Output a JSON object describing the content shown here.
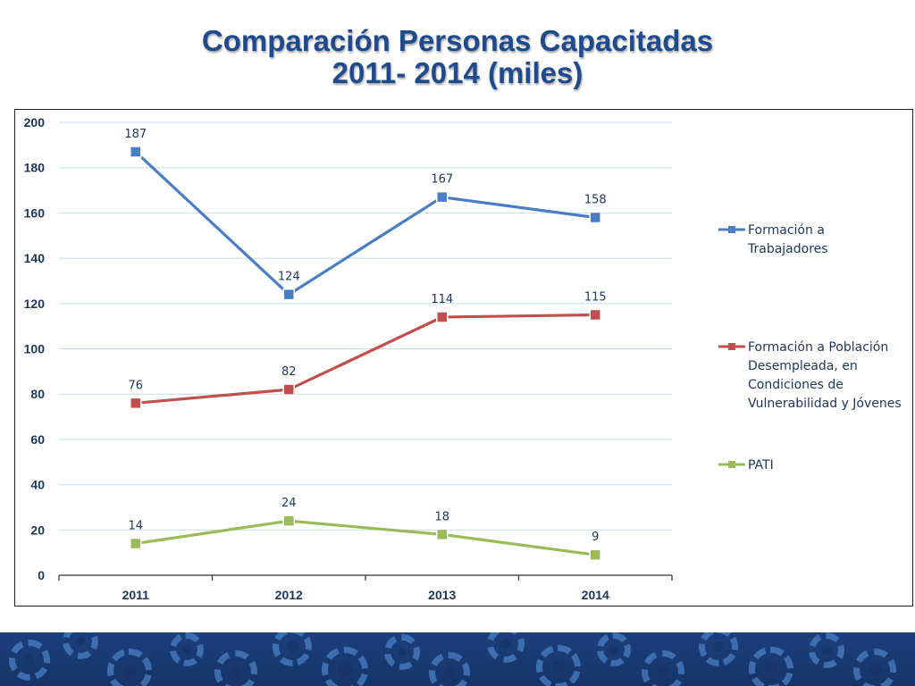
{
  "slide": {
    "title_line1": "Comparación Personas Capacitadas",
    "title_line2": "2011- 2014 (miles)"
  },
  "chart_data": {
    "type": "line",
    "title": "Comparación Personas Capacitadas 2011- 2014 (miles)",
    "categories": [
      "2011",
      "2012",
      "2013",
      "2014"
    ],
    "ylim": [
      0,
      200
    ],
    "yticks": [
      "0",
      "20",
      "40",
      "60",
      "80",
      "100",
      "120",
      "140",
      "160",
      "180",
      "200"
    ],
    "grid": true,
    "legend_position": "right",
    "series": [
      {
        "name": "Formación a Trabajadores",
        "legend_lines": [
          "Formación a",
          "Trabajadores"
        ],
        "values": [
          187,
          124,
          167,
          158
        ],
        "labels": [
          "187",
          "124",
          "167",
          "158"
        ],
        "color": "#4a7ec4"
      },
      {
        "name": "Formación a Población Desempleada, en Condiciones de Vulnerabilidad y Jóvenes",
        "legend_lines": [
          "Formación a Población",
          "Desempleada, en",
          "Condiciones de",
          "Vulnerabilidad y Jóvenes"
        ],
        "values": [
          76,
          82,
          114,
          115
        ],
        "labels": [
          "76",
          "82",
          "114",
          "115"
        ],
        "color": "#c0504d"
      },
      {
        "name": "PATI",
        "legend_lines": [
          "PATI"
        ],
        "values": [
          14,
          24,
          18,
          9
        ],
        "labels": [
          "14",
          "24",
          "18",
          "9"
        ],
        "color": "#9bbb59"
      }
    ]
  }
}
